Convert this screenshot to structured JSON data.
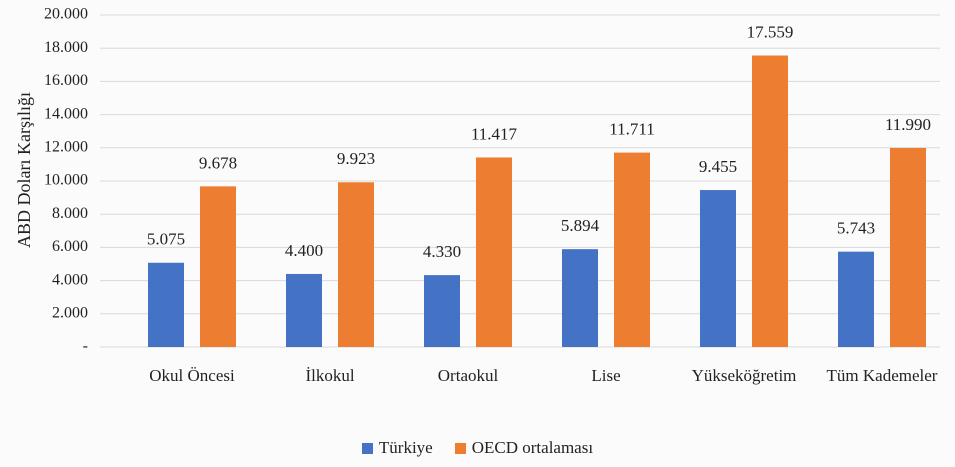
{
  "chart_data": {
    "type": "bar",
    "y_label": "ABD Doları Karşılığı",
    "categories": [
      "Okul Öncesi",
      "İlkokul",
      "Ortaokul",
      "Lise",
      "Yükseköğretim",
      "Tüm Kademeler"
    ],
    "series": [
      {
        "name": "Türkiye",
        "color": "#4472c4",
        "values": [
          5075,
          4400,
          4330,
          5894,
          9455,
          5743
        ],
        "value_labels": [
          "5.075",
          "4.400",
          "4.330",
          "5.894",
          "9.455",
          "5.743"
        ]
      },
      {
        "name": "OECD ortalaması",
        "color": "#ed7d31",
        "values": [
          9678,
          9923,
          11417,
          11711,
          17559,
          11990
        ],
        "value_labels": [
          "9.678",
          "9.923",
          "11.417",
          "11.711",
          "17.559",
          "11.990"
        ]
      }
    ],
    "ylim": [
      0,
      20000
    ],
    "yticks": [
      {
        "value": 0,
        "label": "-"
      },
      {
        "value": 2000,
        "label": "2.000"
      },
      {
        "value": 4000,
        "label": "4.000"
      },
      {
        "value": 6000,
        "label": "6.000"
      },
      {
        "value": 8000,
        "label": "8.000"
      },
      {
        "value": 10000,
        "label": "10.000"
      },
      {
        "value": 12000,
        "label": "12.000"
      },
      {
        "value": 14000,
        "label": "14.000"
      },
      {
        "value": 16000,
        "label": "16.000"
      },
      {
        "value": 18000,
        "label": "18.000"
      },
      {
        "value": 20000,
        "label": "20.000"
      }
    ],
    "grid": true,
    "legend": "bottom"
  }
}
